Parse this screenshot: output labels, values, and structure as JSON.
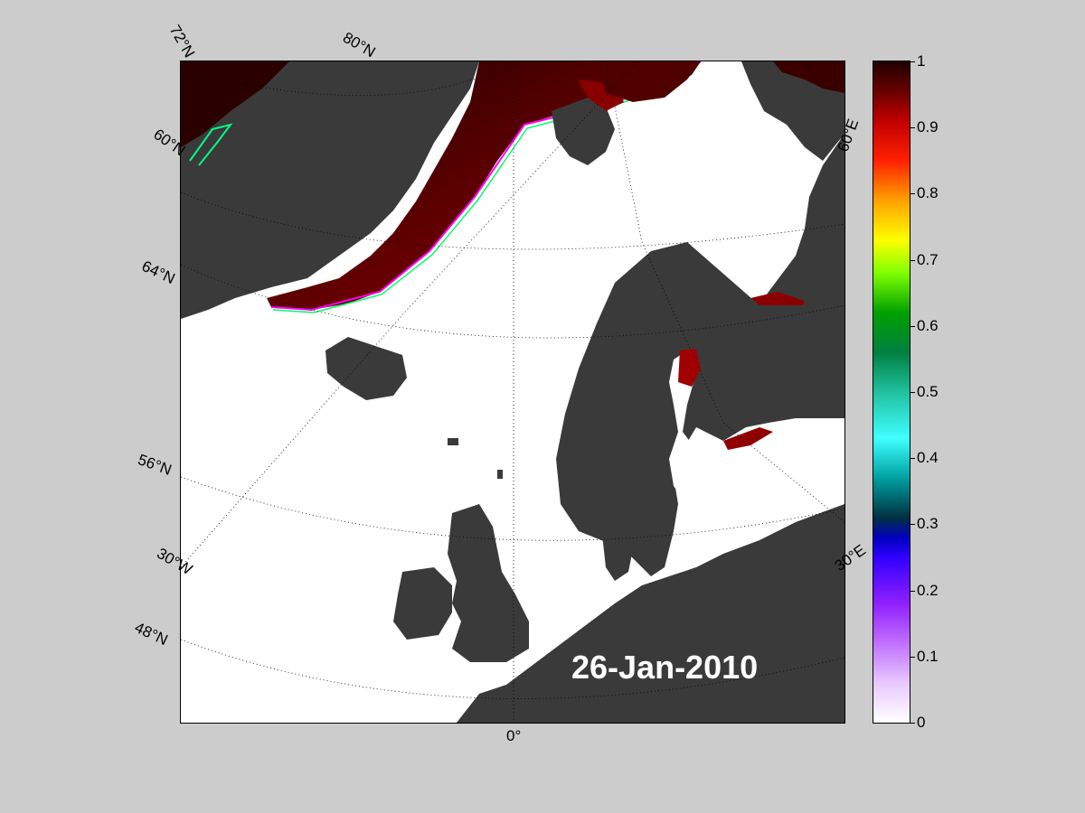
{
  "map": {
    "date": "26-Jan-2010",
    "colors": {
      "land": "#3a3a3a",
      "land_secondary": "#6e6e6e",
      "ocean": "#ffffff",
      "ice_high": "#1a0000",
      "ice_mid": "#c00000",
      "edge_colors": [
        "#ffff00",
        "#00ff00",
        "#00ffff",
        "#0000ff",
        "#ff00ff"
      ]
    },
    "latitude_labels": [
      "72°N",
      "80°N",
      "60°N",
      "64°N",
      "56°N",
      "48°N"
    ],
    "longitude_labels": [
      "30°W",
      "0°",
      "60°E",
      "30°E"
    ],
    "legend": "colormap"
  },
  "colorbar": {
    "ticks": [
      "1",
      "0.9",
      "0.8",
      "0.7",
      "0.6",
      "0.5",
      "0.4",
      "0.3",
      "0.2",
      "0.1",
      "0"
    ],
    "min": 0,
    "max": 1
  }
}
